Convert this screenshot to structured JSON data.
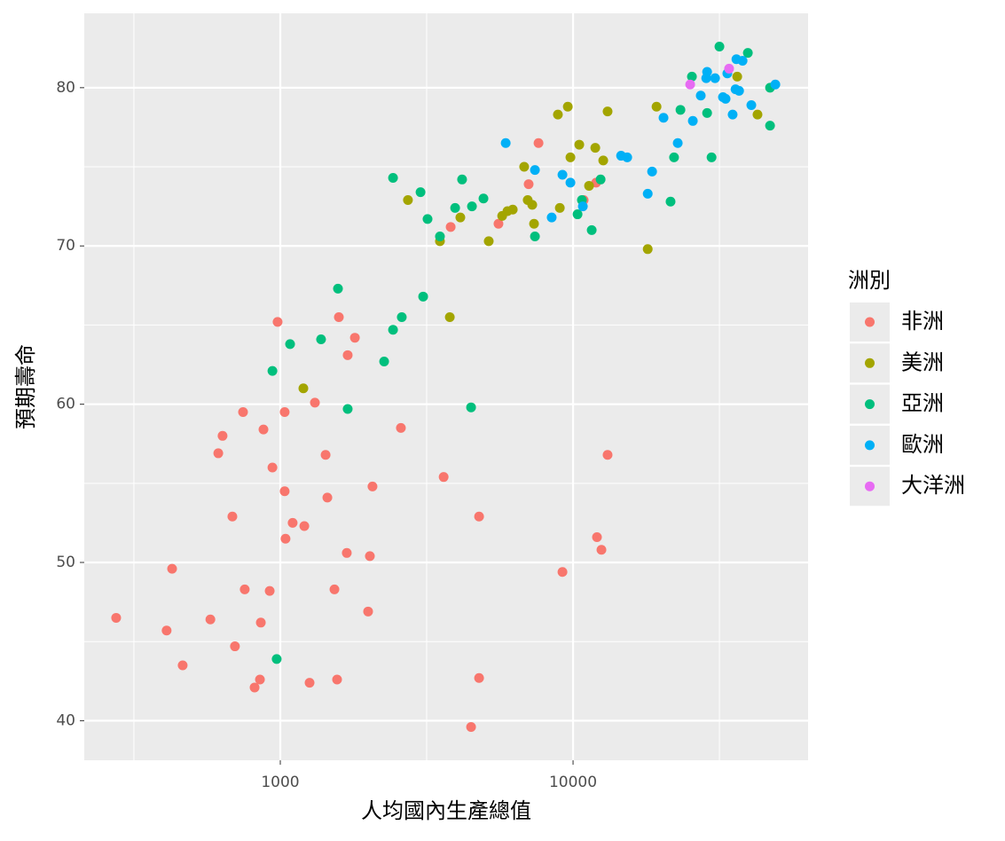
{
  "chart_data": {
    "type": "scatter",
    "x_label": "人均國內生產總值",
    "y_label": "預期壽命",
    "legend_title": "洲別",
    "x_log": true,
    "grid": true,
    "xlim": [
      214,
      63500
    ],
    "ylim": [
      37.5,
      84.7
    ],
    "xticks": [
      1000,
      10000
    ],
    "yticks": [
      40,
      50,
      60,
      70,
      80
    ],
    "x_minor_grid": [
      316.2,
      3162.3,
      31622.8
    ],
    "y_minor_grid": [
      45,
      55,
      65,
      75
    ],
    "legend_position": "right",
    "series": [
      {
        "name": "非洲",
        "color": "#F8766D",
        "x": [
          275,
          427,
          409,
          464,
          577,
          700,
          686,
          614,
          635,
          746,
          756,
          817,
          852,
          858,
          876,
          920,
          940,
          979,
          1035,
          1035,
          1042,
          1102,
          1208,
          1259,
          1313,
          1428,
          1448,
          1531,
          1563,
          1585,
          1687,
          1699,
          1798,
          1995,
          2023,
          2065,
          2582,
          3614,
          3819,
          4484,
          4775,
          4775,
          5562,
          7052,
          7621,
          9200,
          10870,
          11990,
          12070,
          12500,
          13120
        ],
        "values": [
          46.5,
          49.6,
          45.7,
          43.5,
          46.4,
          44.7,
          52.9,
          56.9,
          58.0,
          59.5,
          48.3,
          42.1,
          42.6,
          46.2,
          58.4,
          48.2,
          56.0,
          65.2,
          59.5,
          54.5,
          51.5,
          52.5,
          52.3,
          42.4,
          60.1,
          56.8,
          54.1,
          48.3,
          42.6,
          65.5,
          50.6,
          63.1,
          64.2,
          46.9,
          50.4,
          54.8,
          58.5,
          55.4,
          71.2,
          39.6,
          52.9,
          42.7,
          71.4,
          73.9,
          76.5,
          49.4,
          72.9,
          74.0,
          51.6,
          50.8,
          56.8
        ]
      },
      {
        "name": "美洲",
        "color": "#A3A500",
        "x": [
          1199,
          2729,
          3510,
          3793,
          4121,
          5152,
          5727,
          5970,
          6223,
          6808,
          7000,
          7254,
          7357,
          8876,
          9010,
          9594,
          9795,
          10500,
          11340,
          11910,
          12680,
          13120,
          17990,
          19280,
          36370,
          42660
        ],
        "values": [
          61.0,
          72.9,
          70.3,
          65.5,
          71.8,
          70.3,
          71.9,
          72.2,
          72.3,
          75.0,
          72.9,
          72.6,
          71.4,
          78.3,
          72.4,
          78.8,
          75.6,
          76.4,
          73.8,
          76.2,
          75.4,
          78.5,
          69.8,
          78.8,
          80.7,
          78.3
        ]
      },
      {
        "name": "亞洲",
        "color": "#00BF7D",
        "x": [
          972,
          940,
          1080,
          1378,
          1574,
          1699,
          2263,
          2427,
          2427,
          2600,
          3013,
          3076,
          3184,
          3510,
          3955,
          4178,
          4484,
          4515,
          4943,
          7410,
          10360,
          10720,
          11580,
          12420,
          21530,
          22130,
          23270,
          25470,
          28700,
          29720,
          31620,
          39540,
          47080,
          47080
        ],
        "values": [
          43.9,
          62.1,
          63.8,
          64.1,
          67.3,
          59.7,
          62.7,
          74.3,
          64.7,
          65.5,
          73.4,
          66.8,
          71.7,
          70.6,
          72.4,
          74.2,
          59.8,
          72.5,
          73.0,
          70.6,
          72.0,
          72.9,
          71.0,
          74.2,
          72.8,
          75.6,
          78.6,
          80.7,
          78.4,
          75.6,
          82.6,
          82.2,
          80.0,
          77.6
        ]
      },
      {
        "name": "歐洲",
        "color": "#00B0F6",
        "x": [
          5888,
          7410,
          8453,
          9200,
          9795,
          10800,
          14590,
          15310,
          17990,
          18620,
          20370,
          22780,
          25650,
          27300,
          28500,
          28700,
          30550,
          32510,
          33190,
          33650,
          35080,
          35890,
          36140,
          36900,
          37930,
          40640,
          49090
        ],
        "values": [
          76.5,
          74.8,
          71.8,
          74.5,
          74.0,
          72.5,
          75.7,
          75.6,
          73.3,
          74.7,
          78.1,
          76.5,
          77.9,
          79.5,
          80.6,
          81.0,
          80.6,
          79.4,
          79.3,
          80.9,
          78.3,
          79.9,
          81.8,
          79.8,
          81.7,
          78.9,
          80.2
        ]
      },
      {
        "name": "大洋洲",
        "color": "#E76BF3",
        "x": [
          25120,
          34120
        ],
        "values": [
          80.2,
          81.2
        ]
      }
    ]
  }
}
